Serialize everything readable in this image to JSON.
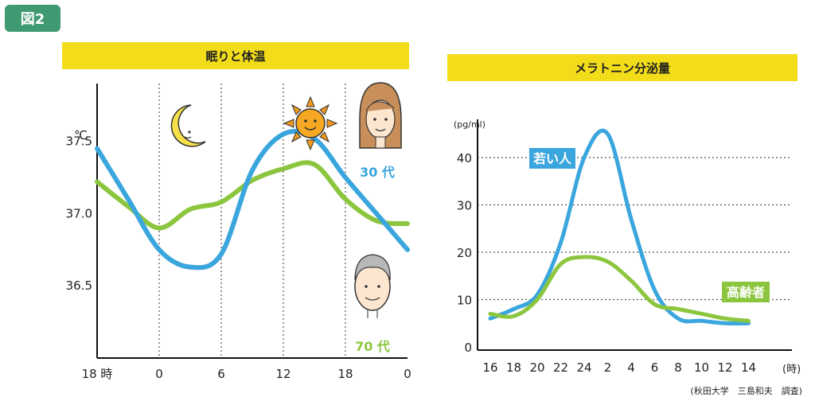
{
  "figure_badge": "図2",
  "chart_data": [
    {
      "type": "line",
      "title": "眠りと体温",
      "yunit": "℃",
      "ylim": [
        36.0,
        37.9
      ],
      "yticks": [
        "37.5",
        "37.0",
        "36.5"
      ],
      "yticks_values": [
        37.5,
        37.0,
        36.5
      ],
      "xticks": [
        "18 時",
        "0",
        "6",
        "12",
        "18",
        "0"
      ],
      "xticks_hours": [
        0,
        6,
        12,
        18,
        24,
        30
      ],
      "x_hours": [
        0,
        3,
        6,
        9,
        12,
        15,
        18,
        21,
        24,
        27,
        30
      ],
      "series": [
        {
          "name": "30 代",
          "color": "#3aa6dd",
          "values": [
            37.45,
            37.1,
            36.75,
            36.63,
            36.72,
            37.3,
            37.55,
            37.52,
            37.25,
            37.0,
            36.75
          ]
        },
        {
          "name": "70 代",
          "color": "#8cc63f",
          "values": [
            37.22,
            37.05,
            36.9,
            37.03,
            37.08,
            37.23,
            37.31,
            37.34,
            37.1,
            36.95,
            36.93
          ]
        }
      ],
      "icons": [
        "moon-icon",
        "sun-icon",
        "young-face-icon",
        "elderly-face-icon"
      ]
    },
    {
      "type": "line",
      "title": "メラトニン分泌量",
      "yunit": "(pg/ml)",
      "ylim": [
        0,
        45
      ],
      "yticks": [
        "40",
        "30",
        "20",
        "10",
        "0"
      ],
      "yticks_values": [
        40,
        30,
        20,
        10,
        0
      ],
      "xticks": [
        "16",
        "18",
        "20",
        "22",
        "24",
        "2",
        "4",
        "6",
        "8",
        "10",
        "12",
        "14"
      ],
      "xunit": "(時)",
      "x_hours": [
        16,
        18,
        20,
        22,
        24,
        26,
        28,
        30,
        32,
        34,
        36,
        38
      ],
      "series": [
        {
          "name": "若い人",
          "color": "#3aa6dd",
          "values": [
            6,
            8,
            11,
            22,
            40,
            45,
            27,
            12,
            6,
            5.5,
            5,
            5
          ]
        },
        {
          "name": "高齢者",
          "color": "#8cc63f",
          "values": [
            7,
            6.5,
            10,
            17.5,
            19,
            18,
            14,
            9,
            8,
            7,
            6,
            5.5
          ]
        }
      ],
      "source": "(秋田大学　三島和夫　調査)"
    }
  ]
}
